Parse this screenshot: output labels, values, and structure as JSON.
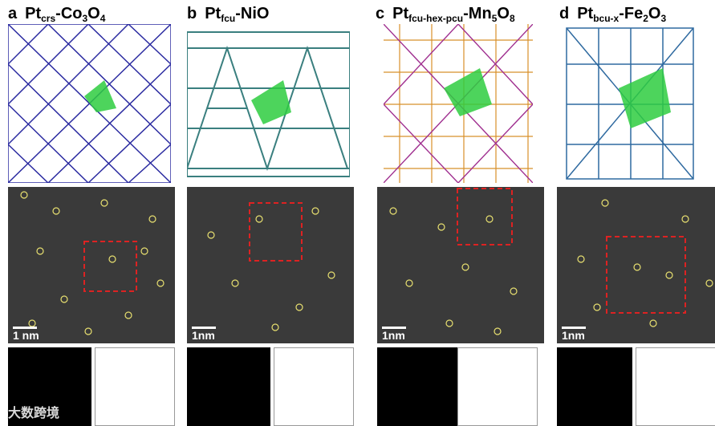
{
  "panels": [
    {
      "letter": "a",
      "pt": "Pt",
      "pt_sub": "crs",
      "oxide_parts": [
        "-Co",
        "3",
        "O",
        "4"
      ],
      "scale": "1 nm",
      "color": "#2a2aa0"
    },
    {
      "letter": "b",
      "pt": "Pt",
      "pt_sub": "fcu",
      "oxide_parts": [
        "-NiO",
        "",
        "",
        " "
      ],
      "scale": "1nm",
      "color": "#3a7f7f"
    },
    {
      "letter": "c",
      "pt": "Pt",
      "pt_sub": "fcu-hex-pcu",
      "oxide_parts": [
        "-Mn",
        "5",
        "O",
        "8"
      ],
      "scale": "1nm",
      "color": "#a03090"
    },
    {
      "letter": "d",
      "pt": "Pt",
      "pt_sub": "bcu-x",
      "oxide_parts": [
        "-Fe",
        "2",
        "O",
        "3"
      ],
      "scale": "1nm",
      "color": "#2f6aa0"
    }
  ],
  "watermark": "大数跨境"
}
